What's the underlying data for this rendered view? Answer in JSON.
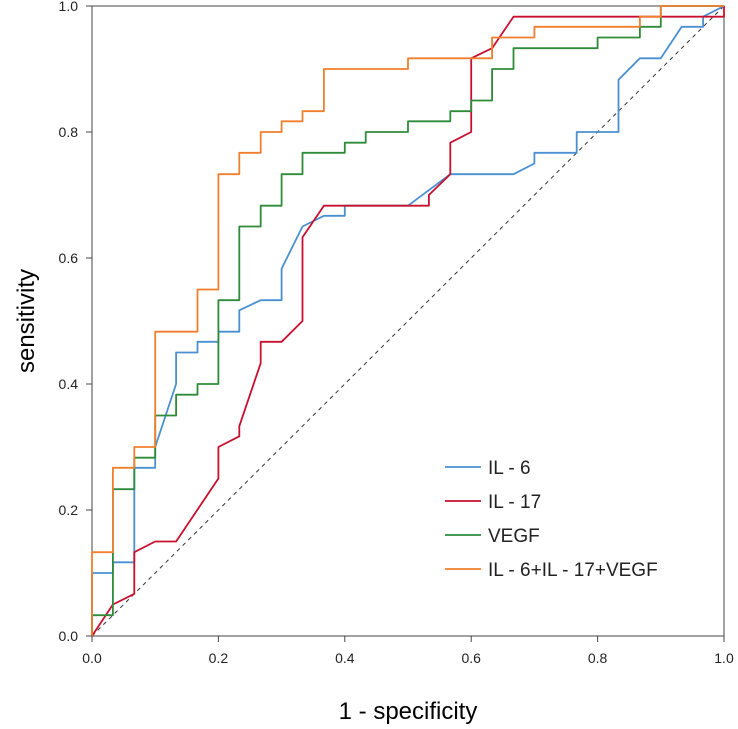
{
  "chart_data": {
    "type": "line",
    "title": "",
    "xlabel": "1 - specificity",
    "ylabel": "sensitivity",
    "xlim": [
      0,
      1
    ],
    "ylim": [
      0,
      1
    ],
    "xticks": [
      "0.0",
      "0.2",
      "0.4",
      "0.6",
      "0.8",
      "1.0"
    ],
    "yticks": [
      "0.0",
      "0.2",
      "0.4",
      "0.6",
      "0.8",
      "1.0"
    ],
    "grid": false,
    "legend_position": "bottom-right",
    "reference_line": {
      "style": "dashed",
      "from": [
        0,
        0
      ],
      "to": [
        1,
        1
      ]
    },
    "series": [
      {
        "name": "IL - 6",
        "color": "#4a90d0",
        "points": [
          [
            0,
            0
          ],
          [
            0,
            0.1
          ],
          [
            0.033,
            0.1
          ],
          [
            0.033,
            0.117
          ],
          [
            0.067,
            0.117
          ],
          [
            0.067,
            0.267
          ],
          [
            0.1,
            0.267
          ],
          [
            0.1,
            0.3
          ],
          [
            0.133,
            0.4
          ],
          [
            0.133,
            0.45
          ],
          [
            0.167,
            0.45
          ],
          [
            0.167,
            0.467
          ],
          [
            0.2,
            0.467
          ],
          [
            0.2,
            0.483
          ],
          [
            0.233,
            0.483
          ],
          [
            0.233,
            0.517
          ],
          [
            0.267,
            0.533
          ],
          [
            0.3,
            0.533
          ],
          [
            0.3,
            0.583
          ],
          [
            0.333,
            0.65
          ],
          [
            0.367,
            0.667
          ],
          [
            0.4,
            0.667
          ],
          [
            0.4,
            0.683
          ],
          [
            0.5,
            0.683
          ],
          [
            0.567,
            0.733
          ],
          [
            0.667,
            0.733
          ],
          [
            0.7,
            0.75
          ],
          [
            0.7,
            0.767
          ],
          [
            0.767,
            0.767
          ],
          [
            0.767,
            0.8
          ],
          [
            0.833,
            0.8
          ],
          [
            0.833,
            0.883
          ],
          [
            0.867,
            0.917
          ],
          [
            0.9,
            0.917
          ],
          [
            0.933,
            0.967
          ],
          [
            0.967,
            0.967
          ],
          [
            0.967,
            0.983
          ],
          [
            1,
            1
          ]
        ]
      },
      {
        "name": "IL - 17",
        "color": "#c8102e",
        "points": [
          [
            0,
            0
          ],
          [
            0.033,
            0.05
          ],
          [
            0.067,
            0.067
          ],
          [
            0.067,
            0.133
          ],
          [
            0.1,
            0.15
          ],
          [
            0.133,
            0.15
          ],
          [
            0.2,
            0.25
          ],
          [
            0.2,
            0.3
          ],
          [
            0.233,
            0.317
          ],
          [
            0.233,
            0.333
          ],
          [
            0.267,
            0.433
          ],
          [
            0.267,
            0.467
          ],
          [
            0.3,
            0.467
          ],
          [
            0.333,
            0.5
          ],
          [
            0.333,
            0.633
          ],
          [
            0.367,
            0.683
          ],
          [
            0.533,
            0.683
          ],
          [
            0.533,
            0.7
          ],
          [
            0.567,
            0.733
          ],
          [
            0.567,
            0.783
          ],
          [
            0.6,
            0.8
          ],
          [
            0.6,
            0.917
          ],
          [
            0.633,
            0.933
          ],
          [
            0.667,
            0.983
          ],
          [
            1,
            0.983
          ],
          [
            1,
            1
          ]
        ]
      },
      {
        "name": "VEGF",
        "color": "#2e8b3a",
        "points": [
          [
            0,
            0
          ],
          [
            0,
            0.033
          ],
          [
            0.033,
            0.033
          ],
          [
            0.033,
            0.233
          ],
          [
            0.067,
            0.233
          ],
          [
            0.067,
            0.283
          ],
          [
            0.1,
            0.283
          ],
          [
            0.1,
            0.35
          ],
          [
            0.133,
            0.35
          ],
          [
            0.133,
            0.383
          ],
          [
            0.167,
            0.383
          ],
          [
            0.167,
            0.4
          ],
          [
            0.2,
            0.4
          ],
          [
            0.2,
            0.533
          ],
          [
            0.233,
            0.533
          ],
          [
            0.233,
            0.65
          ],
          [
            0.267,
            0.65
          ],
          [
            0.267,
            0.683
          ],
          [
            0.3,
            0.683
          ],
          [
            0.3,
            0.733
          ],
          [
            0.333,
            0.733
          ],
          [
            0.333,
            0.767
          ],
          [
            0.4,
            0.767
          ],
          [
            0.4,
            0.783
          ],
          [
            0.433,
            0.783
          ],
          [
            0.433,
            0.8
          ],
          [
            0.5,
            0.8
          ],
          [
            0.5,
            0.817
          ],
          [
            0.567,
            0.817
          ],
          [
            0.567,
            0.833
          ],
          [
            0.6,
            0.833
          ],
          [
            0.6,
            0.85
          ],
          [
            0.633,
            0.85
          ],
          [
            0.633,
            0.9
          ],
          [
            0.667,
            0.9
          ],
          [
            0.667,
            0.933
          ],
          [
            0.8,
            0.933
          ],
          [
            0.8,
            0.95
          ],
          [
            0.867,
            0.95
          ],
          [
            0.867,
            0.967
          ],
          [
            0.9,
            0.967
          ],
          [
            0.9,
            1
          ],
          [
            1,
            1
          ]
        ]
      },
      {
        "name": "IL - 6+IL - 17+VEGF",
        "color": "#f07f2d",
        "points": [
          [
            0,
            0
          ],
          [
            0,
            0.133
          ],
          [
            0.033,
            0.133
          ],
          [
            0.033,
            0.267
          ],
          [
            0.067,
            0.267
          ],
          [
            0.067,
            0.3
          ],
          [
            0.1,
            0.3
          ],
          [
            0.1,
            0.483
          ],
          [
            0.167,
            0.483
          ],
          [
            0.167,
            0.55
          ],
          [
            0.2,
            0.55
          ],
          [
            0.2,
            0.733
          ],
          [
            0.233,
            0.733
          ],
          [
            0.233,
            0.767
          ],
          [
            0.267,
            0.767
          ],
          [
            0.267,
            0.8
          ],
          [
            0.3,
            0.8
          ],
          [
            0.3,
            0.817
          ],
          [
            0.333,
            0.817
          ],
          [
            0.333,
            0.833
          ],
          [
            0.367,
            0.833
          ],
          [
            0.367,
            0.9
          ],
          [
            0.5,
            0.9
          ],
          [
            0.5,
            0.917
          ],
          [
            0.633,
            0.917
          ],
          [
            0.633,
            0.95
          ],
          [
            0.7,
            0.95
          ],
          [
            0.7,
            0.967
          ],
          [
            0.867,
            0.967
          ],
          [
            0.867,
            0.983
          ],
          [
            0.9,
            0.983
          ],
          [
            0.9,
            1
          ],
          [
            1,
            1
          ]
        ]
      }
    ]
  }
}
